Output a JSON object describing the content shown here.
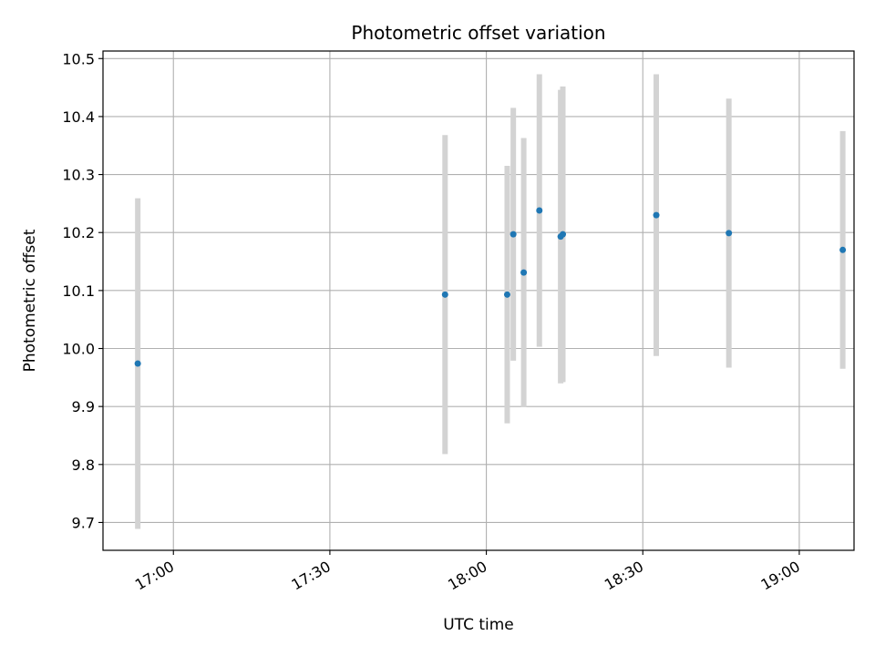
{
  "chart_data": {
    "type": "scatter",
    "title": "Photometric offset variation",
    "xlabel": "UTC time",
    "ylabel": "Photometric offset",
    "x_is_time": true,
    "xlim": [
      "16:46:30",
      "19:10:30"
    ],
    "ylim": [
      9.652,
      10.513
    ],
    "grid": true,
    "x_ticks": [
      "17:00",
      "17:30",
      "18:00",
      "18:30",
      "19:00"
    ],
    "y_ticks": [
      "9.7",
      "9.8",
      "9.9",
      "10.0",
      "10.1",
      "10.2",
      "10.3",
      "10.4",
      "10.5"
    ],
    "colors": {
      "points": "#1f77b4",
      "errorbars": "#d3d3d3",
      "grid": "#b0b0b0",
      "axes": "#000000"
    },
    "points": [
      {
        "x": "16:53:10",
        "y": 9.974,
        "err": 0.285
      },
      {
        "x": "17:52:05",
        "y": 10.093,
        "err": 0.275
      },
      {
        "x": "18:04:00",
        "y": 10.093,
        "err": 0.222
      },
      {
        "x": "18:05:10",
        "y": 10.197,
        "err": 0.218
      },
      {
        "x": "18:07:10",
        "y": 10.131,
        "err": 0.232
      },
      {
        "x": "18:10:10",
        "y": 10.238,
        "err": 0.235
      },
      {
        "x": "18:14:15",
        "y": 10.193,
        "err": 0.253
      },
      {
        "x": "18:14:40",
        "y": 10.197,
        "err": 0.255
      },
      {
        "x": "18:32:35",
        "y": 10.23,
        "err": 0.243
      },
      {
        "x": "18:46:30",
        "y": 10.199,
        "err": 0.232
      },
      {
        "x": "19:08:20",
        "y": 10.17,
        "err": 0.205
      }
    ]
  }
}
